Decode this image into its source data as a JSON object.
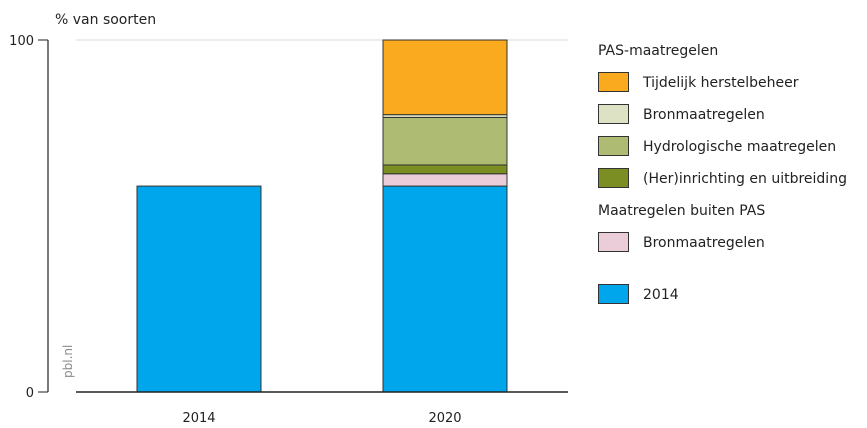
{
  "chart_data": {
    "type": "bar",
    "stacked": true,
    "ylabel": "% van soorten",
    "ylim": [
      0,
      100
    ],
    "yticks": [
      0,
      100
    ],
    "categories": [
      "2014",
      "2020"
    ],
    "series": [
      {
        "name": "2014",
        "color": "#00a6eb",
        "values": [
          58.5,
          58.5
        ]
      },
      {
        "name": "Bronmaatregelen",
        "group": "Maatregelen buiten PAS",
        "color": "#ebcdd9",
        "values": [
          0,
          3.5
        ]
      },
      {
        "name": "(Her)inrichting en uitbreiding",
        "group": "PAS-maatregelen",
        "color": "#7a8e23",
        "values": [
          0,
          2.5
        ]
      },
      {
        "name": "Hydrologische maatregelen",
        "group": "PAS-maatregelen",
        "color": "#aebb73",
        "values": [
          0,
          13.5
        ]
      },
      {
        "name": "Bronmaatregelen",
        "group": "PAS-maatregelen",
        "color": "#dde2c5",
        "values": [
          0,
          0.8
        ]
      },
      {
        "name": "Tijdelijk herstelbeheer",
        "group": "PAS-maatregelen",
        "color": "#f9aa1e",
        "values": [
          0,
          21.2
        ]
      }
    ],
    "legend": {
      "placement": "right",
      "groups": [
        {
          "title": "PAS-maatregelen",
          "items": [
            {
              "label": "Tijdelijk herstelbeheer",
              "color": "#f9aa1e"
            },
            {
              "label": "Bronmaatregelen",
              "color": "#dde2c5"
            },
            {
              "label": "Hydrologische maatregelen",
              "color": "#aebb73"
            },
            {
              "label": "(Her)inrichting en uitbreiding",
              "color": "#7a8e23"
            }
          ]
        },
        {
          "title": "Maatregelen buiten PAS",
          "items": [
            {
              "label": "Bronmaatregelen",
              "color": "#ebcdd9"
            }
          ]
        },
        {
          "title": "",
          "items": [
            {
              "label": "2014",
              "color": "#00a6eb"
            }
          ]
        }
      ]
    },
    "source": "pbl.nl",
    "grid": true
  }
}
